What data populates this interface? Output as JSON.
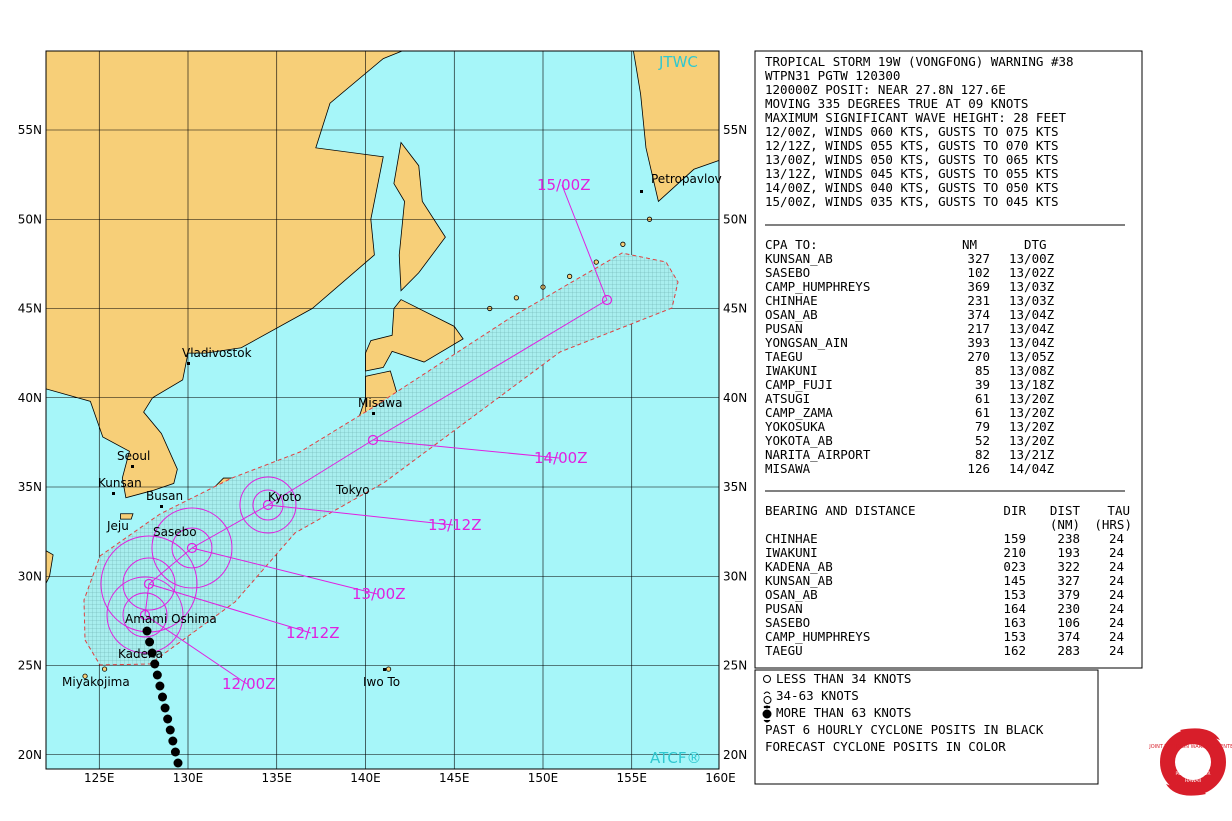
{
  "map": {
    "watermarks": [
      "JTWC",
      "ATCF®"
    ],
    "places": [
      "Petropavlov",
      "Vladivostok",
      "Misawa",
      "Seoul",
      "Kunsan",
      "Busan",
      "Jeju",
      "Sasebo",
      "Kyoto",
      "Tokyo",
      "Amami Oshima",
      "Kadena",
      "Miyakojima",
      "Iwo To"
    ],
    "lat_ticks": [
      "55N",
      "50N",
      "45N",
      "40N",
      "35N",
      "30N",
      "25N",
      "20N"
    ],
    "lon_ticks": [
      "125E",
      "130E",
      "135E",
      "140E",
      "145E",
      "150E",
      "155E",
      "160E"
    ],
    "forecast_labels": [
      "15/00Z",
      "14/00Z",
      "13/12Z",
      "13/00Z",
      "12/12Z",
      "12/00Z"
    ]
  },
  "warning": {
    "lines": [
      "TROPICAL STORM 19W (VONGFONG) WARNING #38",
      "WTPN31 PGTW 120300",
      "120000Z POSIT: NEAR 27.8N 127.6E",
      "MOVING 335 DEGREES TRUE AT 09 KNOTS",
      "MAXIMUM SIGNIFICANT WAVE HEIGHT: 28 FEET",
      "12/00Z, WINDS 060 KTS, GUSTS TO 075 KTS",
      "12/12Z, WINDS 055 KTS, GUSTS TO 070 KTS",
      "13/00Z, WINDS 050 KTS, GUSTS TO 065 KTS",
      "13/12Z, WINDS 045 KTS, GUSTS TO 055 KTS",
      "14/00Z, WINDS 040 KTS, GUSTS TO 050 KTS",
      "15/00Z, WINDS 035 KTS, GUSTS TO 045 KTS"
    ]
  },
  "cpa": {
    "header": [
      "CPA TO:",
      "NM",
      "DTG"
    ],
    "rows": [
      [
        "KUNSAN_AB",
        "327",
        "13/00Z"
      ],
      [
        "SASEBO",
        "102",
        "13/02Z"
      ],
      [
        "CAMP_HUMPHREYS",
        "369",
        "13/03Z"
      ],
      [
        "CHINHAE",
        "231",
        "13/03Z"
      ],
      [
        "OSAN_AB",
        "374",
        "13/04Z"
      ],
      [
        "PUSAN",
        "217",
        "13/04Z"
      ],
      [
        "YONGSAN_AIN",
        "393",
        "13/04Z"
      ],
      [
        "TAEGU",
        "270",
        "13/05Z"
      ],
      [
        "IWAKUNI",
        "85",
        "13/08Z"
      ],
      [
        "CAMP_FUJI",
        "39",
        "13/18Z"
      ],
      [
        "ATSUGI",
        "61",
        "13/20Z"
      ],
      [
        "CAMP_ZAMA",
        "61",
        "13/20Z"
      ],
      [
        "YOKOSUKA",
        "79",
        "13/20Z"
      ],
      [
        "YOKOTA_AB",
        "52",
        "13/20Z"
      ],
      [
        "NARITA_AIRPORT",
        "82",
        "13/21Z"
      ],
      [
        "MISAWA",
        "126",
        "14/04Z"
      ]
    ]
  },
  "bearing": {
    "header": [
      "BEARING AND DISTANCE",
      "DIR",
      "DIST",
      "TAU"
    ],
    "subheader": [
      "(NM)",
      "(HRS)"
    ],
    "rows": [
      [
        "CHINHAE",
        "159",
        "238",
        "24"
      ],
      [
        "IWAKUNI",
        "210",
        "193",
        "24"
      ],
      [
        "KADENA_AB",
        "023",
        "322",
        "24"
      ],
      [
        "KUNSAN_AB",
        "145",
        "327",
        "24"
      ],
      [
        "OSAN_AB",
        "153",
        "379",
        "24"
      ],
      [
        "PUSAN",
        "164",
        "230",
        "24"
      ],
      [
        "SASEBO",
        "163",
        "106",
        "24"
      ],
      [
        "CAMP_HUMPHREYS",
        "153",
        "374",
        "24"
      ],
      [
        "TAEGU",
        "162",
        "283",
        "24"
      ]
    ]
  },
  "legend": {
    "lines": [
      "LESS THAN 34 KNOTS",
      "34-63 KNOTS",
      "MORE THAN 63 KNOTS",
      "PAST 6 HOURLY CYCLONE POSITS IN BLACK",
      "FORECAST CYCLONE POSITS IN COLOR"
    ]
  },
  "logo": {
    "lines": [
      "JOINT TYPHOON WARNING CENTER",
      "PEARL HARBOR",
      "HAWAII"
    ]
  }
}
